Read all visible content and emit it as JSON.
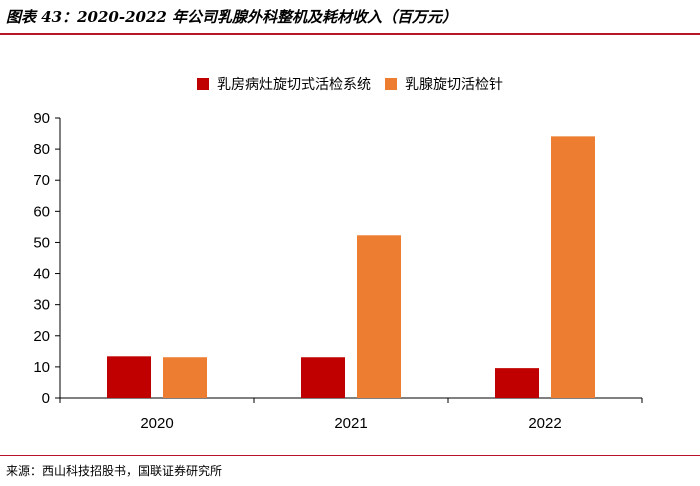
{
  "figure": {
    "title": "图表 43：2020-2022 年公司乳腺外科整机及耗材收入（百万元）",
    "source": "来源：西山科技招股书，国联证券研究所"
  },
  "colors": {
    "rule": "#b8142a",
    "series1": "#c00000",
    "series2": "#ed7d31"
  },
  "chart_data": {
    "type": "bar",
    "categories": [
      "2020",
      "2021",
      "2022"
    ],
    "series": [
      {
        "name": "乳房病灶旋切式活检系统",
        "values": [
          13.4,
          13.1,
          9.6
        ],
        "color": "#c00000"
      },
      {
        "name": "乳腺旋切活检针",
        "values": [
          13.1,
          52.3,
          84.1
        ],
        "color": "#ed7d31"
      }
    ],
    "ylim": [
      0,
      90
    ],
    "yticks": [
      0,
      10,
      20,
      30,
      40,
      50,
      60,
      70,
      80,
      90
    ],
    "grid": false,
    "legend": "top-center"
  }
}
